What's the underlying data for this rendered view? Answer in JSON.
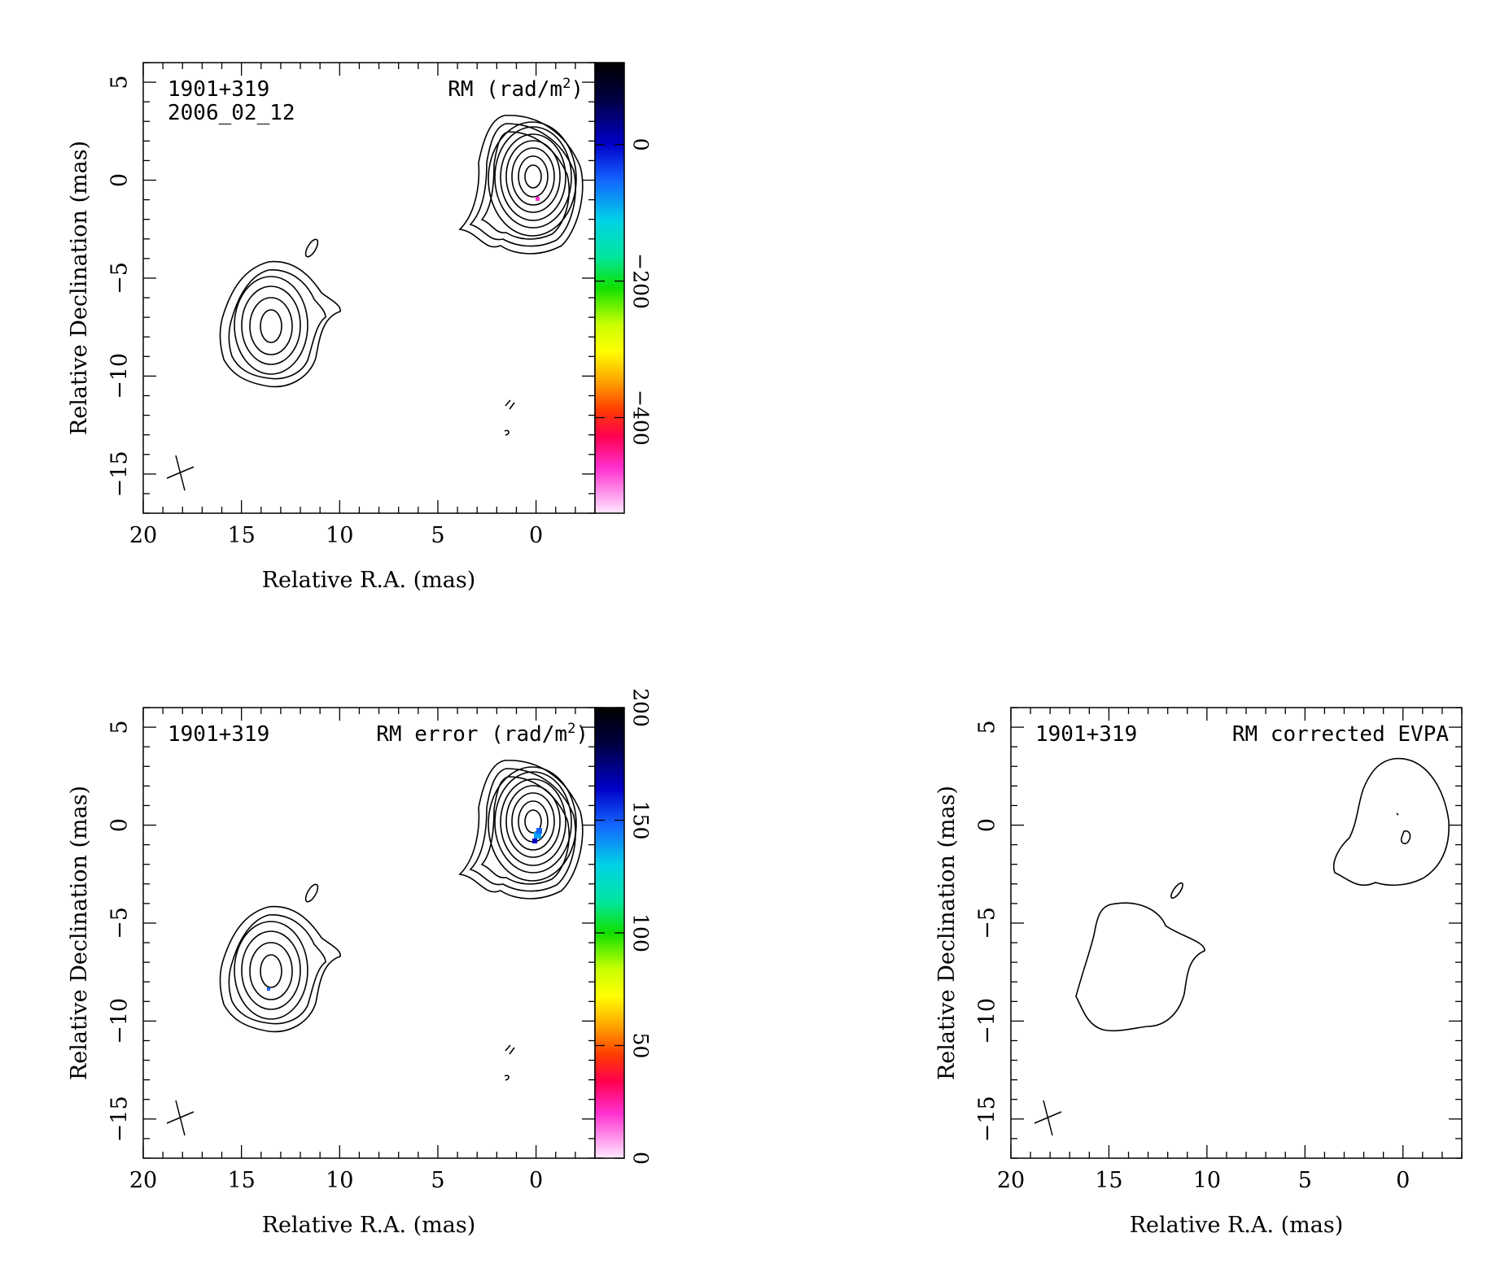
{
  "x_axis_label": "Relative R.A. (mas)",
  "y_axis_label": "Relative Declination (mas)",
  "x_ticks": [
    20,
    15,
    10,
    5,
    0
  ],
  "y_ticks": [
    5,
    0,
    -5,
    -10,
    -15
  ],
  "x_tick_labels": [
    "20",
    "15",
    "10",
    "5",
    "0"
  ],
  "y_tick_labels": [
    "5",
    "0",
    "−5",
    "−10",
    "−15"
  ],
  "panels": [
    {
      "id": "rm",
      "source_label": "1901+319",
      "epoch_label": "2006_02_12",
      "title_main": "RM (rad/m",
      "title_sup": "2",
      "title_end": ")",
      "has_colorbar": true,
      "colorbar_min": -540,
      "colorbar_max": 120,
      "colorbar_ticks": [
        0,
        -200,
        -400
      ],
      "colorbar_tick_labels": [
        "0",
        "−200",
        "−400"
      ]
    },
    {
      "id": "rm_error",
      "source_label": "1901+319",
      "epoch_label": "",
      "title_main": "RM error (rad/m",
      "title_sup": "2",
      "title_end": ")",
      "has_colorbar": true,
      "colorbar_min": 0,
      "colorbar_max": 200,
      "colorbar_ticks": [
        0,
        50,
        100,
        150,
        200
      ],
      "colorbar_tick_labels": [
        "0",
        "50",
        "100",
        "150",
        "200"
      ]
    },
    {
      "id": "evpa",
      "source_label": "1901+319",
      "epoch_label": "",
      "title_main": "RM corrected EVPA",
      "title_sup": "",
      "title_end": "",
      "has_colorbar": false
    }
  ],
  "chart_data": [
    {
      "type": "heatmap",
      "title": "RM (rad/m^2)",
      "xlabel": "Relative R.A. (mas)",
      "ylabel": "Relative Declination (mas)",
      "xlim": [
        20,
        -3
      ],
      "ylim": [
        -17,
        6
      ],
      "colorbar_label": "RM (rad/m^2)",
      "colorbar_ticks": [
        0,
        -200,
        -400
      ],
      "components": [
        {
          "name": "core",
          "center": [
            0,
            0
          ],
          "contour_levels": 10
        },
        {
          "name": "jet",
          "center": [
            13.5,
            -7.8
          ],
          "contour_levels": 5
        }
      ]
    },
    {
      "type": "heatmap",
      "title": "RM error (rad/m^2)",
      "xlabel": "Relative R.A. (mas)",
      "ylabel": "Relative Declination (mas)",
      "xlim": [
        20,
        -3
      ],
      "ylim": [
        -17,
        6
      ],
      "colorbar_label": "RM error (rad/m^2)",
      "colorbar_ticks": [
        0,
        50,
        100,
        150,
        200
      ],
      "components": [
        {
          "name": "core",
          "center": [
            0,
            0
          ],
          "contour_levels": 10
        },
        {
          "name": "jet",
          "center": [
            13.5,
            -7.8
          ],
          "contour_levels": 5
        }
      ]
    },
    {
      "type": "heatmap",
      "title": "RM corrected EVPA",
      "xlabel": "Relative R.A. (mas)",
      "ylabel": "Relative Declination (mas)",
      "xlim": [
        20,
        -3
      ],
      "ylim": [
        -17,
        6
      ],
      "components": [
        {
          "name": "core",
          "center": [
            0,
            0
          ],
          "contour_levels": 1
        },
        {
          "name": "jet",
          "center": [
            13.5,
            -7.8
          ],
          "contour_levels": 1
        }
      ]
    }
  ]
}
